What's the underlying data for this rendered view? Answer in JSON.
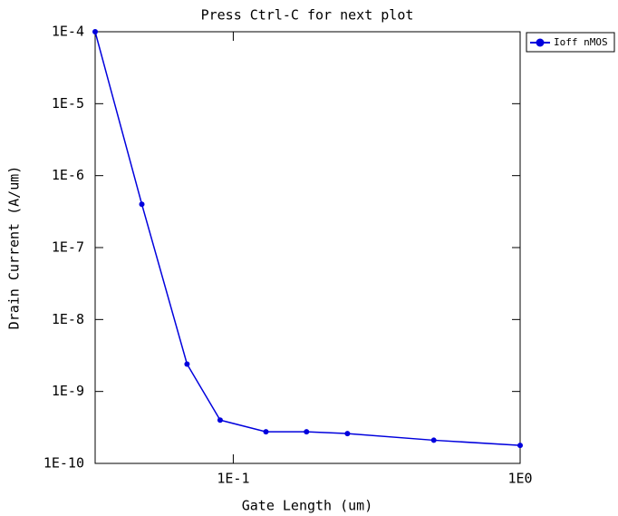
{
  "chart_data": {
    "type": "line",
    "title": "Press Ctrl-C for next plot",
    "x_label": "Gate Length (um)",
    "y_label": "Drain Current (A/um)",
    "x_log": true,
    "y_log": true,
    "legend_position": "outside-top-right",
    "xlim": [
      0.033,
      1
    ],
    "ylim": [
      1e-10,
      0.0001
    ],
    "xticks": [
      {
        "value": 0.1,
        "label": "1E-1"
      },
      {
        "value": 1,
        "label": "1E0"
      }
    ],
    "yticks": [
      {
        "value": 1e-10,
        "label": "1E-10"
      },
      {
        "value": 1e-09,
        "label": "1E-9"
      },
      {
        "value": 1e-08,
        "label": "1E-8"
      },
      {
        "value": 1e-07,
        "label": "1E-7"
      },
      {
        "value": 1e-06,
        "label": "1E-6"
      },
      {
        "value": 1e-05,
        "label": "1E-5"
      },
      {
        "value": 0.0001,
        "label": "1E-4"
      }
    ],
    "series": [
      {
        "name": "Ioff nMOS",
        "color": "#0000dd",
        "x": [
          0.033,
          0.048,
          0.069,
          0.09,
          0.13,
          0.18,
          0.25,
          0.5,
          1
        ],
        "values": [
          0.0001,
          4e-07,
          2.4e-09,
          4e-10,
          2.75e-10,
          2.75e-10,
          2.6e-10,
          2.1e-10,
          1.78e-10
        ]
      }
    ]
  }
}
